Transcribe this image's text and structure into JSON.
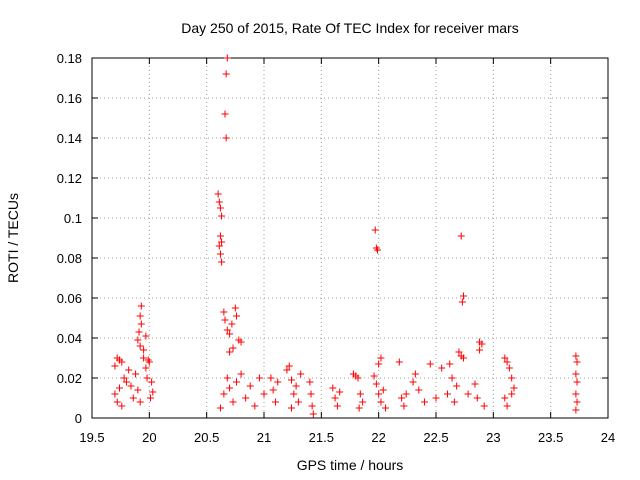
{
  "chart_data": {
    "type": "scatter",
    "title": "Day 250 of 2015, Rate Of TEC Index for receiver mars",
    "xlabel": "GPS time / hours",
    "ylabel": "ROTI / TECUs",
    "xlim": [
      19.5,
      24
    ],
    "ylim": [
      0,
      0.18
    ],
    "xticks": [
      "19.5",
      "20",
      "20.5",
      "21",
      "21.5",
      "22",
      "22.5",
      "23",
      "23.5",
      "24"
    ],
    "yticks": [
      "0",
      "0.02",
      "0.04",
      "0.06",
      "0.08",
      "0.1",
      "0.12",
      "0.14",
      "0.16",
      "0.18"
    ],
    "grid": true,
    "marker": "+",
    "color": "#ff0000",
    "points": [
      [
        19.7,
        0.026
      ],
      [
        19.72,
        0.03
      ],
      [
        19.74,
        0.029
      ],
      [
        19.76,
        0.028
      ],
      [
        19.7,
        0.012
      ],
      [
        19.72,
        0.008
      ],
      [
        19.74,
        0.015
      ],
      [
        19.76,
        0.006
      ],
      [
        19.78,
        0.02
      ],
      [
        19.8,
        0.018
      ],
      [
        19.82,
        0.024
      ],
      [
        19.84,
        0.016
      ],
      [
        19.86,
        0.01
      ],
      [
        19.88,
        0.022
      ],
      [
        19.9,
        0.014
      ],
      [
        19.92,
        0.008
      ],
      [
        19.93,
        0.056
      ],
      [
        19.92,
        0.051
      ],
      [
        19.93,
        0.047
      ],
      [
        19.91,
        0.043
      ],
      [
        19.9,
        0.039
      ],
      [
        19.92,
        0.036
      ],
      [
        19.95,
        0.03
      ],
      [
        19.97,
        0.025
      ],
      [
        19.98,
        0.02
      ],
      [
        20.0,
        0.028
      ],
      [
        20.02,
        0.018
      ],
      [
        20.03,
        0.013
      ],
      [
        19.95,
        0.034
      ],
      [
        19.97,
        0.041
      ],
      [
        19.99,
        0.029
      ],
      [
        20.01,
        0.01
      ],
      [
        20.6,
        0.112
      ],
      [
        20.61,
        0.108
      ],
      [
        20.62,
        0.105
      ],
      [
        20.63,
        0.101
      ],
      [
        20.62,
        0.091
      ],
      [
        20.63,
        0.088
      ],
      [
        20.61,
        0.086
      ],
      [
        20.62,
        0.082
      ],
      [
        20.63,
        0.078
      ],
      [
        20.65,
        0.053
      ],
      [
        20.66,
        0.049
      ],
      [
        20.68,
        0.044
      ],
      [
        20.7,
        0.042
      ],
      [
        20.72,
        0.047
      ],
      [
        20.75,
        0.055
      ],
      [
        20.76,
        0.051
      ],
      [
        20.78,
        0.039
      ],
      [
        20.8,
        0.038
      ],
      [
        20.73,
        0.035
      ],
      [
        20.7,
        0.033
      ],
      [
        20.68,
        0.18
      ],
      [
        20.67,
        0.172
      ],
      [
        20.66,
        0.152
      ],
      [
        20.67,
        0.14
      ],
      [
        20.62,
        0.005
      ],
      [
        20.65,
        0.012
      ],
      [
        20.68,
        0.02
      ],
      [
        20.7,
        0.015
      ],
      [
        20.73,
        0.008
      ],
      [
        20.76,
        0.018
      ],
      [
        20.8,
        0.022
      ],
      [
        20.84,
        0.01
      ],
      [
        20.88,
        0.016
      ],
      [
        20.92,
        0.006
      ],
      [
        20.96,
        0.02
      ],
      [
        21.0,
        0.012
      ],
      [
        21.06,
        0.02
      ],
      [
        21.08,
        0.014
      ],
      [
        21.1,
        0.008
      ],
      [
        21.12,
        0.018
      ],
      [
        21.2,
        0.024
      ],
      [
        21.22,
        0.026
      ],
      [
        21.24,
        0.019
      ],
      [
        21.26,
        0.012
      ],
      [
        21.28,
        0.016
      ],
      [
        21.3,
        0.008
      ],
      [
        21.32,
        0.022
      ],
      [
        21.24,
        0.005
      ],
      [
        21.4,
        0.018
      ],
      [
        21.41,
        0.012
      ],
      [
        21.42,
        0.006
      ],
      [
        21.43,
        0.002
      ],
      [
        21.6,
        0.015
      ],
      [
        21.62,
        0.01
      ],
      [
        21.64,
        0.006
      ],
      [
        21.66,
        0.013
      ],
      [
        21.78,
        0.022
      ],
      [
        21.8,
        0.021
      ],
      [
        21.82,
        0.02
      ],
      [
        21.84,
        0.012
      ],
      [
        21.86,
        0.008
      ],
      [
        21.83,
        0.005
      ],
      [
        21.97,
        0.094
      ],
      [
        21.98,
        0.085
      ],
      [
        21.99,
        0.084
      ],
      [
        21.96,
        0.021
      ],
      [
        21.98,
        0.017
      ],
      [
        22.0,
        0.027
      ],
      [
        22.02,
        0.03
      ],
      [
        22.0,
        0.012
      ],
      [
        22.02,
        0.008
      ],
      [
        22.04,
        0.014
      ],
      [
        22.06,
        0.005
      ],
      [
        22.2,
        0.01
      ],
      [
        22.22,
        0.006
      ],
      [
        22.24,
        0.012
      ],
      [
        22.18,
        0.028
      ],
      [
        22.3,
        0.018
      ],
      [
        22.32,
        0.022
      ],
      [
        22.35,
        0.014
      ],
      [
        22.4,
        0.008
      ],
      [
        22.45,
        0.027
      ],
      [
        22.5,
        0.01
      ],
      [
        22.55,
        0.025
      ],
      [
        22.6,
        0.012
      ],
      [
        22.62,
        0.027
      ],
      [
        22.64,
        0.02
      ],
      [
        22.66,
        0.008
      ],
      [
        22.68,
        0.016
      ],
      [
        22.7,
        0.033
      ],
      [
        22.72,
        0.031
      ],
      [
        22.74,
        0.03
      ],
      [
        22.72,
        0.091
      ],
      [
        22.74,
        0.061
      ],
      [
        22.73,
        0.058
      ],
      [
        22.78,
        0.012
      ],
      [
        22.84,
        0.017
      ],
      [
        22.86,
        0.01
      ],
      [
        22.88,
        0.038
      ],
      [
        22.9,
        0.037
      ],
      [
        22.88,
        0.034
      ],
      [
        22.92,
        0.006
      ],
      [
        23.1,
        0.03
      ],
      [
        23.12,
        0.028
      ],
      [
        23.14,
        0.025
      ],
      [
        23.16,
        0.02
      ],
      [
        23.18,
        0.015
      ],
      [
        23.1,
        0.01
      ],
      [
        23.12,
        0.006
      ],
      [
        23.16,
        0.012
      ],
      [
        23.72,
        0.031
      ],
      [
        23.73,
        0.028
      ],
      [
        23.72,
        0.022
      ],
      [
        23.73,
        0.018
      ],
      [
        23.72,
        0.012
      ],
      [
        23.73,
        0.008
      ],
      [
        23.72,
        0.004
      ]
    ]
  }
}
